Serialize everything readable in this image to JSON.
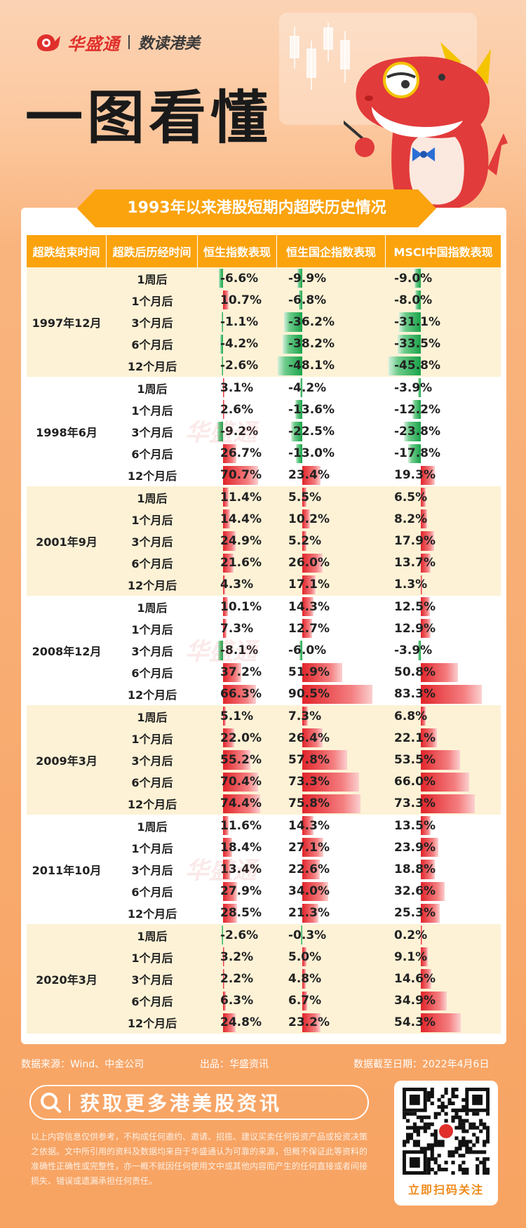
{
  "brand": {
    "name": "华盛通",
    "sub": "数读港美"
  },
  "headline": "一图看懂",
  "watermark": "华盛通",
  "chart_data": {
    "type": "table",
    "title": "1993年以来港股短期内超跌历史情况",
    "columns": [
      "超跌结束时间",
      "超跌后历经时间",
      "恒生指数表现",
      "恒生国企指数表现",
      "MSCI中国指数表现"
    ],
    "series": [
      {
        "name": "恒生指数表现"
      },
      {
        "name": "恒生国企指数表现"
      },
      {
        "name": "MSCI中国指数表现"
      }
    ],
    "periods": [
      "1周后",
      "1个月后",
      "3个月后",
      "6个月后",
      "12个月后"
    ],
    "groups": [
      {
        "date": "1997年12月",
        "values": [
          [
            -6.6,
            -9.9,
            -9.0
          ],
          [
            10.7,
            -6.8,
            -8.0
          ],
          [
            -1.1,
            -36.2,
            -31.1
          ],
          [
            -4.2,
            -38.2,
            -33.5
          ],
          [
            -2.6,
            -48.1,
            -45.8
          ]
        ]
      },
      {
        "date": "1998年6月",
        "values": [
          [
            3.1,
            -4.2,
            -3.9
          ],
          [
            2.6,
            -13.6,
            -12.2
          ],
          [
            -9.2,
            -22.5,
            -23.8
          ],
          [
            26.7,
            -13.0,
            -17.8
          ],
          [
            70.7,
            23.4,
            19.3
          ]
        ]
      },
      {
        "date": "2001年9月",
        "values": [
          [
            11.4,
            5.5,
            6.5
          ],
          [
            14.4,
            10.2,
            8.2
          ],
          [
            24.9,
            5.2,
            17.9
          ],
          [
            21.6,
            26.0,
            13.7
          ],
          [
            4.3,
            17.1,
            1.3
          ]
        ]
      },
      {
        "date": "2008年12月",
        "values": [
          [
            10.1,
            14.3,
            12.5
          ],
          [
            7.3,
            12.7,
            12.9
          ],
          [
            -8.1,
            -6.0,
            -3.9
          ],
          [
            37.2,
            51.9,
            50.8
          ],
          [
            66.3,
            90.5,
            83.3
          ]
        ]
      },
      {
        "date": "2009年3月",
        "values": [
          [
            5.1,
            7.3,
            6.8
          ],
          [
            22.0,
            26.4,
            22.1
          ],
          [
            55.2,
            57.8,
            53.5
          ],
          [
            70.4,
            73.3,
            66.0
          ],
          [
            74.4,
            75.8,
            73.3
          ]
        ]
      },
      {
        "date": "2011年10月",
        "values": [
          [
            11.6,
            14.3,
            13.5
          ],
          [
            18.4,
            27.1,
            23.9
          ],
          [
            13.4,
            22.6,
            18.8
          ],
          [
            27.9,
            34.0,
            32.6
          ],
          [
            28.5,
            21.3,
            25.3
          ]
        ]
      },
      {
        "date": "2020年3月",
        "values": [
          [
            -2.6,
            -0.3,
            0.2
          ],
          [
            3.2,
            5.0,
            9.1
          ],
          [
            2.2,
            4.8,
            14.6
          ],
          [
            6.3,
            6.7,
            34.9
          ],
          [
            24.8,
            23.2,
            54.3
          ]
        ]
      }
    ],
    "colors": {
      "positive": "#e1242a",
      "negative": "#1aa34a",
      "header": "#fba30d",
      "stripe": "#fdf2d6"
    }
  },
  "footer": {
    "source": "数据来源：Wind、中金公司",
    "publisher": "出品：华盛资讯",
    "as_of": "数据截至日期：2022年4月6日"
  },
  "cta": {
    "text": "获取更多港美股资讯",
    "icon": "search-icon"
  },
  "disclaimer": "以上内容信息仅供参考，不构成任何邀约、邀请、招揽、建议买卖任何投资产品或投资决策之依据。文中所引用的资料及数据均来自于华盛通认为可靠的来源，但概不保证此等资料的准确性正确性或完整性，亦一概不就因任何使用文中或其他内容而产生的任何直接或者间接损失、错误或遗漏承担任何责任。",
  "qr": {
    "caption": "立即扫码关注"
  }
}
